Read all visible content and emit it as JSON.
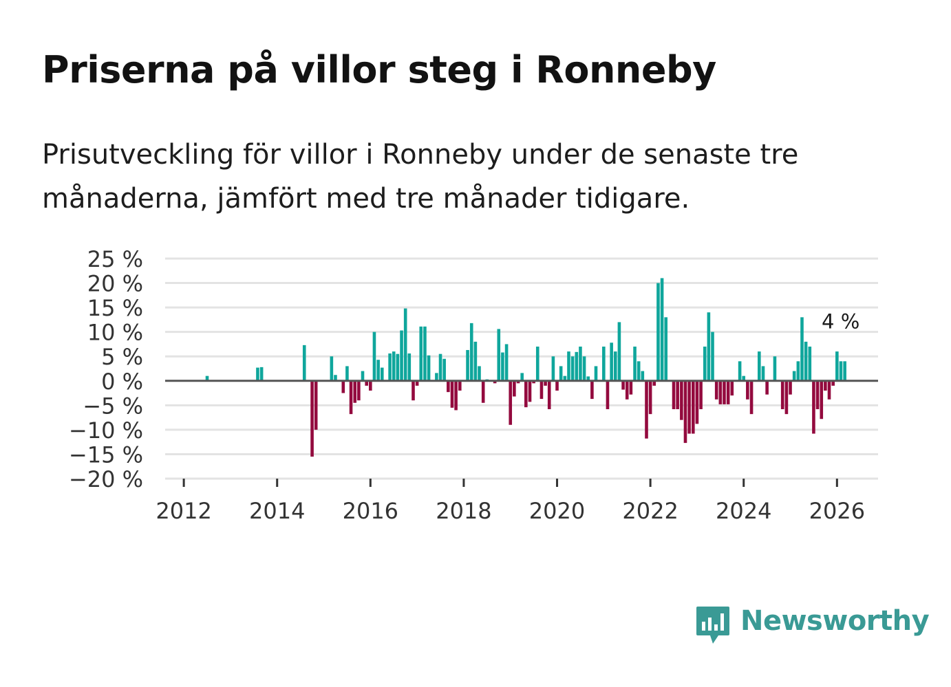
{
  "title": "Priserna på villor steg i Ronneby",
  "subtitle": "Prisutveckling för villor i Ronneby under de senaste tre månaderna, jämfört med tre månader tidigare.",
  "logo": {
    "text": "Newsworthy",
    "icon": "bar-chart-speech-bubble-icon"
  },
  "colors": {
    "positive": "#0fa69c",
    "negative": "#930a3e",
    "grid": "#e3e3e3",
    "zero_line": "#555555",
    "brand": "#3a9a95"
  },
  "chart_data": {
    "type": "bar",
    "title": "Priserna på villor steg i Ronneby",
    "xlabel": "",
    "ylabel": "",
    "y_ticks": [
      25,
      20,
      15,
      10,
      5,
      0,
      -5,
      -10,
      -15,
      -20
    ],
    "y_tick_labels": [
      "25 %",
      "20 %",
      "15 %",
      "10 %",
      "5 %",
      "0 %",
      "−5 %",
      "−10 %",
      "−15 %",
      "−20 %"
    ],
    "ylim": [
      -20,
      25
    ],
    "x_ticks": [
      2012,
      2014,
      2016,
      2018,
      2020,
      2022,
      2024,
      2026
    ],
    "x_tick_labels": [
      "2012",
      "2014",
      "2016",
      "2018",
      "2020",
      "2022",
      "2024",
      "2026"
    ],
    "xlim": [
      2011.6,
      2026.88
    ],
    "last_value_label": "4 %",
    "series": [
      {
        "name": "Prisutveckling",
        "points": [
          [
            2012.5,
            1
          ],
          [
            2013.583,
            2.7
          ],
          [
            2013.667,
            2.8
          ],
          [
            2014.583,
            7.3
          ],
          [
            2014.75,
            -15.5
          ],
          [
            2014.833,
            -10
          ],
          [
            2015.167,
            5
          ],
          [
            2015.25,
            1.2
          ],
          [
            2015.417,
            -2.5
          ],
          [
            2015.5,
            3
          ],
          [
            2015.583,
            -6.8
          ],
          [
            2015.667,
            -4.5
          ],
          [
            2015.75,
            -4
          ],
          [
            2015.833,
            2
          ],
          [
            2015.917,
            -1
          ],
          [
            2016.0,
            -2
          ],
          [
            2016.083,
            10
          ],
          [
            2016.167,
            4.3
          ],
          [
            2016.25,
            2.7
          ],
          [
            2016.417,
            5.6
          ],
          [
            2016.5,
            6
          ],
          [
            2016.583,
            5.5
          ],
          [
            2016.667,
            10.3
          ],
          [
            2016.75,
            14.8
          ],
          [
            2016.833,
            5.6
          ],
          [
            2016.917,
            -4
          ],
          [
            2017.0,
            -1
          ],
          [
            2017.083,
            11.1
          ],
          [
            2017.167,
            11.1
          ],
          [
            2017.25,
            5.2
          ],
          [
            2017.417,
            1.6
          ],
          [
            2017.5,
            5.5
          ],
          [
            2017.583,
            4.5
          ],
          [
            2017.667,
            -2.3
          ],
          [
            2017.75,
            -5.5
          ],
          [
            2017.833,
            -6
          ],
          [
            2017.917,
            -2
          ],
          [
            2018.083,
            6.3
          ],
          [
            2018.167,
            11.8
          ],
          [
            2018.25,
            8
          ],
          [
            2018.333,
            3
          ],
          [
            2018.417,
            -4.5
          ],
          [
            2018.5,
            0.3
          ],
          [
            2018.667,
            -0.5
          ],
          [
            2018.75,
            10.6
          ],
          [
            2018.833,
            5.8
          ],
          [
            2018.917,
            7.5
          ],
          [
            2019.0,
            -9
          ],
          [
            2019.083,
            -3.2
          ],
          [
            2019.167,
            -0.5
          ],
          [
            2019.25,
            1.6
          ],
          [
            2019.333,
            -5.4
          ],
          [
            2019.417,
            -4.3
          ],
          [
            2019.5,
            -0.5
          ],
          [
            2019.583,
            7
          ],
          [
            2019.667,
            -3.7
          ],
          [
            2019.75,
            -1
          ],
          [
            2019.833,
            -5.8
          ],
          [
            2019.917,
            5
          ],
          [
            2020.0,
            -2
          ],
          [
            2020.083,
            3
          ],
          [
            2020.167,
            1
          ],
          [
            2020.25,
            6
          ],
          [
            2020.333,
            5
          ],
          [
            2020.417,
            5.9
          ],
          [
            2020.5,
            7
          ],
          [
            2020.583,
            5
          ],
          [
            2020.667,
            0.9
          ],
          [
            2020.75,
            -3.7
          ],
          [
            2020.833,
            3
          ],
          [
            2020.917,
            0
          ],
          [
            2021.0,
            7
          ],
          [
            2021.083,
            -5.8
          ],
          [
            2021.167,
            7.8
          ],
          [
            2021.25,
            6
          ],
          [
            2021.333,
            12
          ],
          [
            2021.417,
            -1.8
          ],
          [
            2021.5,
            -3.8
          ],
          [
            2021.583,
            -2.8
          ],
          [
            2021.667,
            7
          ],
          [
            2021.75,
            4
          ],
          [
            2021.833,
            2
          ],
          [
            2021.917,
            -11.8
          ],
          [
            2022.0,
            -6.8
          ],
          [
            2022.083,
            -1
          ],
          [
            2022.167,
            20
          ],
          [
            2022.25,
            21
          ],
          [
            2022.333,
            13
          ],
          [
            2022.5,
            -5.8
          ],
          [
            2022.583,
            -5.8
          ],
          [
            2022.667,
            -8
          ],
          [
            2022.75,
            -12.7
          ],
          [
            2022.833,
            -10.8
          ],
          [
            2022.917,
            -10.8
          ],
          [
            2023.0,
            -8.8
          ],
          [
            2023.083,
            -5.8
          ],
          [
            2023.167,
            7
          ],
          [
            2023.25,
            14
          ],
          [
            2023.333,
            10
          ],
          [
            2023.417,
            -3.8
          ],
          [
            2023.5,
            -4.8
          ],
          [
            2023.583,
            -4.8
          ],
          [
            2023.667,
            -4.8
          ],
          [
            2023.75,
            -3
          ],
          [
            2023.917,
            4
          ],
          [
            2024.0,
            1
          ],
          [
            2024.083,
            -3.8
          ],
          [
            2024.167,
            -6.8
          ],
          [
            2024.333,
            6
          ],
          [
            2024.417,
            3
          ],
          [
            2024.5,
            -2.8
          ],
          [
            2024.667,
            5
          ],
          [
            2024.833,
            -5.8
          ],
          [
            2024.917,
            -6.8
          ],
          [
            2025.0,
            -2.8
          ],
          [
            2025.083,
            2
          ],
          [
            2025.167,
            4
          ],
          [
            2025.25,
            13
          ],
          [
            2025.333,
            8
          ],
          [
            2025.417,
            7
          ],
          [
            2025.5,
            -10.8
          ],
          [
            2025.583,
            -5.8
          ],
          [
            2025.667,
            -7.8
          ],
          [
            2025.75,
            -2
          ],
          [
            2025.833,
            -3.8
          ],
          [
            2025.917,
            -1
          ],
          [
            2026.0,
            6
          ],
          [
            2026.083,
            4
          ],
          [
            2026.167,
            4
          ]
        ]
      }
    ]
  }
}
